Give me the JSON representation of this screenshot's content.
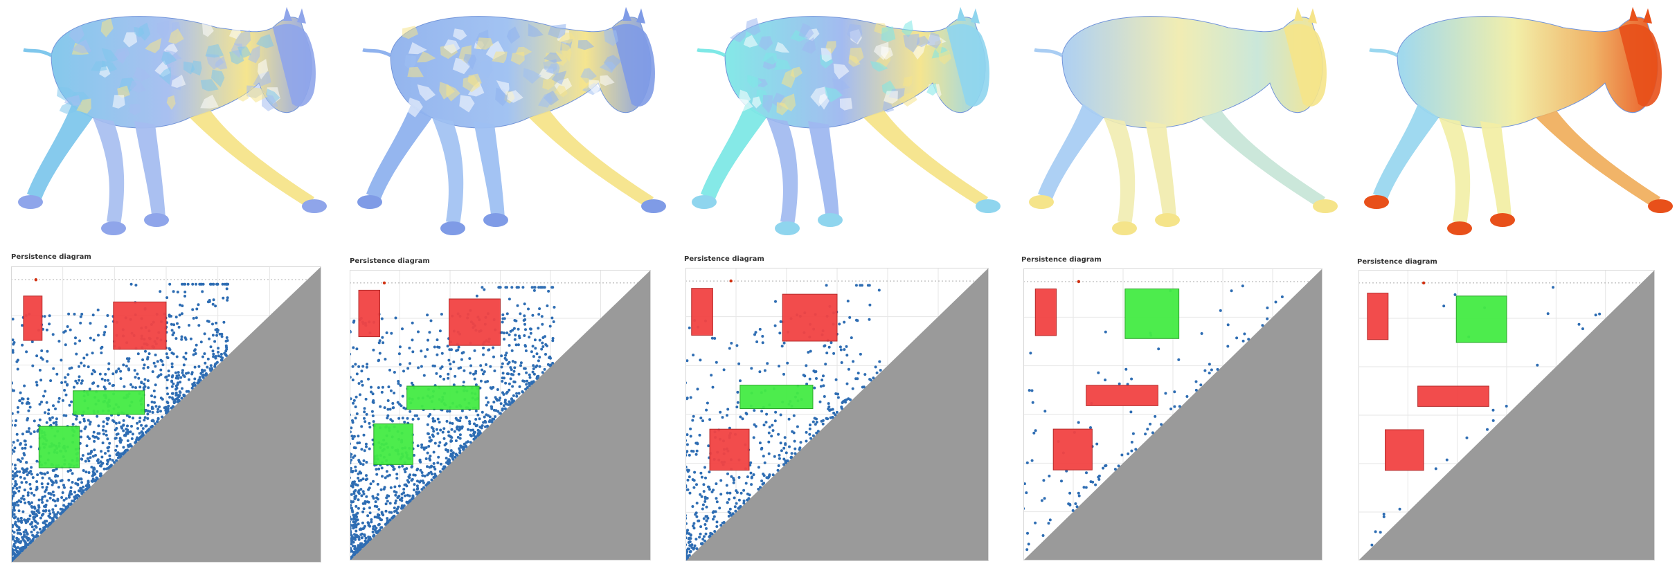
{
  "panels": [
    {
      "title": "Persistence diagram"
    },
    {
      "title": "Persistence diagram"
    },
    {
      "title": "Persistence diagram"
    },
    {
      "title": "Persistence diagram"
    },
    {
      "title": "Persistence diagram"
    }
  ],
  "colors": {
    "point": "#2e6db3",
    "diagonal_fill": "#9a9a9a",
    "box_red": "#f24343",
    "box_green": "#44ec44",
    "grid": "#e6e6e6",
    "essential_marker": "#d03010",
    "mesh_cool": "#7fd6e8",
    "mesh_warm": "#f5e48a",
    "mesh_hot": "#e8501a"
  },
  "mesh_icons": [
    "camel-mesh-icon",
    "camel-mesh-icon",
    "camel-mesh-icon",
    "camel-mesh-icon",
    "camel-mesh-icon"
  ],
  "chart_data": [
    {
      "type": "scatter",
      "xlim": [
        0,
        1
      ],
      "ylim": [
        0,
        1
      ],
      "grid": true,
      "diagonal": true,
      "point_count": 1400,
      "cluster": {
        "x_center": 0.15,
        "spread": 0.35
      },
      "highlight_boxes": [
        {
          "color": "red",
          "x": [
            0.04,
            0.1
          ],
          "y": [
            0.75,
            0.9
          ]
        },
        {
          "color": "red",
          "x": [
            0.33,
            0.5
          ],
          "y": [
            0.72,
            0.88
          ]
        },
        {
          "color": "green",
          "x": [
            0.2,
            0.43
          ],
          "y": [
            0.5,
            0.58
          ]
        },
        {
          "color": "green",
          "x": [
            0.09,
            0.22
          ],
          "y": [
            0.32,
            0.46
          ]
        }
      ]
    },
    {
      "type": "scatter",
      "xlim": [
        0,
        1
      ],
      "ylim": [
        0,
        1
      ],
      "grid": true,
      "diagonal": true,
      "point_count": 1200,
      "cluster": {
        "x_center": 0.15,
        "spread": 0.33
      },
      "highlight_boxes": [
        {
          "color": "red",
          "x": [
            0.03,
            0.1
          ],
          "y": [
            0.77,
            0.93
          ]
        },
        {
          "color": "red",
          "x": [
            0.33,
            0.5
          ],
          "y": [
            0.74,
            0.9
          ]
        },
        {
          "color": "green",
          "x": [
            0.19,
            0.43
          ],
          "y": [
            0.52,
            0.6
          ]
        },
        {
          "color": "green",
          "x": [
            0.08,
            0.21
          ],
          "y": [
            0.33,
            0.47
          ]
        }
      ]
    },
    {
      "type": "scatter",
      "xlim": [
        0,
        1
      ],
      "ylim": [
        0,
        1
      ],
      "grid": true,
      "diagonal": true,
      "point_count": 500,
      "cluster": {
        "x_center": 0.22,
        "spread": 0.3
      },
      "highlight_boxes": [
        {
          "color": "red",
          "x": [
            0.02,
            0.09
          ],
          "y": [
            0.77,
            0.93
          ]
        },
        {
          "color": "red",
          "x": [
            0.32,
            0.5
          ],
          "y": [
            0.75,
            0.91
          ]
        },
        {
          "color": "green",
          "x": [
            0.18,
            0.42
          ],
          "y": [
            0.52,
            0.6
          ]
        },
        {
          "color": "red",
          "x": [
            0.08,
            0.21
          ],
          "y": [
            0.31,
            0.45
          ]
        }
      ]
    },
    {
      "type": "scatter",
      "xlim": [
        0,
        1
      ],
      "ylim": [
        0,
        1
      ],
      "grid": true,
      "diagonal": true,
      "point_count": 110,
      "cluster": {
        "x_center": 0.2,
        "spread": 0.4
      },
      "highlight_boxes": [
        {
          "color": "red",
          "x": [
            0.04,
            0.11
          ],
          "y": [
            0.77,
            0.93
          ]
        },
        {
          "color": "green",
          "x": [
            0.34,
            0.52
          ],
          "y": [
            0.76,
            0.93
          ]
        },
        {
          "color": "red",
          "x": [
            0.21,
            0.45
          ],
          "y": [
            0.53,
            0.6
          ]
        },
        {
          "color": "red",
          "x": [
            0.1,
            0.23
          ],
          "y": [
            0.31,
            0.45
          ]
        }
      ]
    },
    {
      "type": "scatter",
      "xlim": [
        0,
        1
      ],
      "ylim": [
        0,
        1
      ],
      "grid": true,
      "diagonal": true,
      "point_count": 24,
      "cluster": {
        "x_center": 0.2,
        "spread": 0.5
      },
      "highlight_boxes": [
        {
          "color": "red",
          "x": [
            0.03,
            0.1
          ],
          "y": [
            0.76,
            0.92
          ]
        },
        {
          "color": "green",
          "x": [
            0.33,
            0.5
          ],
          "y": [
            0.75,
            0.91
          ]
        },
        {
          "color": "red",
          "x": [
            0.2,
            0.44
          ],
          "y": [
            0.53,
            0.6
          ]
        },
        {
          "color": "red",
          "x": [
            0.09,
            0.22
          ],
          "y": [
            0.31,
            0.45
          ]
        }
      ]
    }
  ]
}
